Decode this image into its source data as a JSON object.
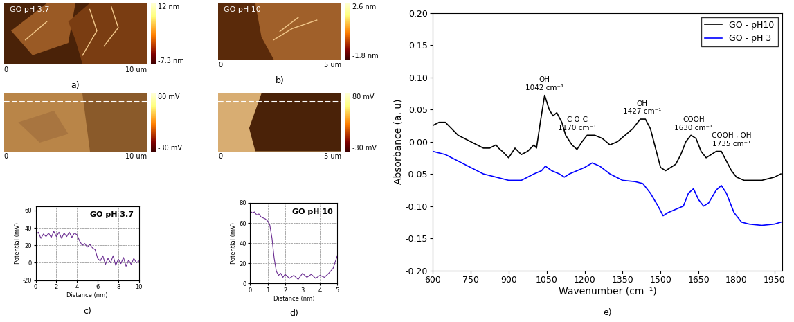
{
  "chart_data": [
    {
      "type": "image",
      "title": "GO pH 3.7",
      "caption": "a)",
      "xlim": [
        0,
        10
      ],
      "xticks": [
        0,
        {
          "value": 10,
          "label": "10 um"
        }
      ],
      "colorbar": {
        "range": [
          -7.3,
          12
        ],
        "ticks": [
          {
            "value": 12,
            "label": "12 nm"
          },
          {
            "value": -7.3,
            "label": "-7.3 nm"
          }
        ]
      }
    },
    {
      "type": "image",
      "title": "GO pH 10",
      "caption": "b)",
      "xlim": [
        0,
        5
      ],
      "xticks": [
        0,
        {
          "value": 5,
          "label": "5 um"
        }
      ],
      "colorbar": {
        "range": [
          -1.8,
          2.6
        ],
        "ticks": [
          {
            "value": 2.6,
            "label": "2.6 nm"
          },
          {
            "value": -1.8,
            "label": "-1.8 nm"
          }
        ]
      }
    },
    {
      "type": "image",
      "xlim": [
        0,
        10
      ],
      "xticks": [
        0,
        {
          "value": 10,
          "label": "10 um"
        }
      ],
      "colorbar": {
        "range": [
          -30,
          80
        ],
        "ticks": [
          {
            "value": 80,
            "label": "80 mV"
          },
          {
            "value": -30,
            "label": "-30 mV"
          }
        ]
      }
    },
    {
      "type": "image",
      "xlim": [
        0,
        5
      ],
      "xticks": [
        0,
        {
          "value": 5,
          "label": "5 um"
        }
      ],
      "colorbar": {
        "range": [
          -30,
          80
        ],
        "ticks": [
          {
            "value": 80,
            "label": "80 mV"
          },
          {
            "value": -30,
            "label": "-30 mV"
          }
        ]
      }
    },
    {
      "type": "line",
      "title": "GO pH 3.7",
      "caption": "c)",
      "x_label": "Distance (nm)",
      "y_label": "Potential (mV)",
      "color": "#6a2c91",
      "grid": true,
      "xlim": [
        0,
        10
      ],
      "xticks": [
        0,
        2,
        4,
        6,
        8,
        10
      ],
      "ylim": [
        -20,
        65
      ],
      "yticks": [
        -20,
        0,
        20,
        40,
        60
      ],
      "x": [
        0,
        0.25,
        0.5,
        0.75,
        1,
        1.25,
        1.5,
        1.75,
        2,
        2.25,
        2.5,
        2.75,
        3,
        3.25,
        3.5,
        3.75,
        4,
        4.25,
        4.5,
        4.75,
        5,
        5.25,
        5.5,
        5.75,
        6,
        6.25,
        6.5,
        6.75,
        7,
        7.25,
        7.5,
        7.75,
        8,
        8.25,
        8.5,
        8.75,
        9,
        9.25,
        9.5,
        9.75,
        10
      ],
      "values": [
        32,
        35,
        28,
        33,
        30,
        34,
        29,
        36,
        30,
        35,
        28,
        34,
        30,
        35,
        29,
        34,
        32,
        25,
        20,
        22,
        18,
        21,
        17,
        15,
        5,
        2,
        8,
        -2,
        5,
        0,
        8,
        -3,
        4,
        -1,
        6,
        -4,
        3,
        -2,
        5,
        0,
        2
      ]
    },
    {
      "type": "line",
      "title": "GO pH 10",
      "caption": "d)",
      "x_label": "Distance (nm)",
      "y_label": "Potential (mV)",
      "color": "#6a2c91",
      "grid": true,
      "xlim": [
        0,
        5
      ],
      "xticks": [
        0,
        1,
        2,
        3,
        4,
        5
      ],
      "ylim": [
        0,
        80
      ],
      "yticks": [
        0,
        20,
        40,
        60,
        80
      ],
      "x": [
        0,
        0.125,
        0.25,
        0.375,
        0.5,
        0.625,
        0.75,
        0.875,
        1,
        1.125,
        1.25,
        1.375,
        1.5,
        1.625,
        1.75,
        1.875,
        2,
        2.25,
        2.5,
        2.75,
        3,
        3.25,
        3.5,
        3.75,
        4,
        4.25,
        4.5,
        4.75,
        5
      ],
      "values": [
        72,
        70,
        71,
        68,
        69,
        66,
        65,
        64,
        62,
        58,
        45,
        25,
        12,
        8,
        10,
        6,
        9,
        5,
        8,
        4,
        10,
        6,
        9,
        5,
        8,
        6,
        10,
        15,
        28
      ]
    },
    {
      "type": "line",
      "caption": "e)",
      "x_label": "Wavenumber (cm⁻¹)",
      "y_label": "Absorbance (a. u)",
      "legend": "upper right",
      "xlim": [
        600,
        1980
      ],
      "xticks": [
        600,
        750,
        900,
        1050,
        1200,
        1350,
        1500,
        1650,
        1800,
        1950
      ],
      "ylim": [
        -0.2,
        0.2
      ],
      "yticks": [
        {
          "value": -0.2,
          "label": "-0.20"
        },
        {
          "value": -0.15,
          "label": "-0.15"
        },
        {
          "value": -0.1,
          "label": "-0.10"
        },
        {
          "value": -0.05,
          "label": "-0.05"
        },
        {
          "value": 0,
          "label": "0.00"
        },
        {
          "value": 0.05,
          "label": "0.05"
        },
        {
          "value": 0.1,
          "label": "0.10"
        },
        {
          "value": 0.15,
          "label": "0.15"
        },
        {
          "value": 0.2,
          "label": "0.20"
        }
      ],
      "series": [
        {
          "name": "GO - pH10",
          "color": "#000000",
          "x": [
            600,
            625,
            650,
            675,
            700,
            725,
            750,
            775,
            800,
            825,
            850,
            860,
            875,
            900,
            925,
            950,
            975,
            1000,
            1010,
            1025,
            1042,
            1060,
            1075,
            1090,
            1110,
            1125,
            1150,
            1170,
            1190,
            1210,
            1240,
            1270,
            1300,
            1330,
            1360,
            1390,
            1420,
            1440,
            1460,
            1480,
            1500,
            1520,
            1540,
            1560,
            1580,
            1600,
            1620,
            1640,
            1660,
            1680,
            1700,
            1720,
            1740,
            1760,
            1780,
            1800,
            1830,
            1860,
            1900,
            1950,
            1975
          ],
          "values": [
            0.025,
            0.03,
            0.03,
            0.02,
            0.01,
            0.005,
            0.0,
            -0.005,
            -0.01,
            -0.01,
            -0.005,
            -0.01,
            -0.015,
            -0.025,
            -0.01,
            -0.02,
            -0.015,
            -0.005,
            -0.01,
            0.03,
            0.072,
            0.05,
            0.04,
            0.045,
            0.03,
            0.01,
            -0.005,
            -0.012,
            0.0,
            0.01,
            0.01,
            0.005,
            -0.005,
            0.0,
            0.01,
            0.02,
            0.035,
            0.035,
            0.02,
            -0.01,
            -0.04,
            -0.045,
            -0.04,
            -0.035,
            -0.02,
            0.0,
            0.01,
            0.005,
            -0.015,
            -0.025,
            -0.02,
            -0.015,
            -0.015,
            -0.03,
            -0.045,
            -0.055,
            -0.06,
            -0.06,
            -0.06,
            -0.055,
            -0.05
          ]
        },
        {
          "name": "GO - pH 3",
          "color": "#0000ff",
          "x": [
            600,
            650,
            700,
            750,
            800,
            850,
            900,
            950,
            1000,
            1030,
            1045,
            1070,
            1100,
            1120,
            1140,
            1170,
            1200,
            1230,
            1260,
            1300,
            1350,
            1400,
            1430,
            1460,
            1490,
            1510,
            1530,
            1560,
            1590,
            1610,
            1630,
            1650,
            1670,
            1690,
            1720,
            1740,
            1760,
            1790,
            1820,
            1850,
            1900,
            1950,
            1975
          ],
          "values": [
            -0.015,
            -0.02,
            -0.03,
            -0.04,
            -0.05,
            -0.055,
            -0.06,
            -0.06,
            -0.05,
            -0.045,
            -0.038,
            -0.045,
            -0.05,
            -0.055,
            -0.05,
            -0.045,
            -0.04,
            -0.033,
            -0.038,
            -0.05,
            -0.06,
            -0.062,
            -0.065,
            -0.08,
            -0.1,
            -0.115,
            -0.11,
            -0.105,
            -0.1,
            -0.08,
            -0.073,
            -0.09,
            -0.1,
            -0.095,
            -0.075,
            -0.068,
            -0.08,
            -0.11,
            -0.125,
            -0.128,
            -0.13,
            -0.128,
            -0.125
          ]
        }
      ],
      "annotations": [
        {
          "text": "OH\n1042 cm⁻¹",
          "x": 1042
        },
        {
          "text": "C-O-C\n1170 cm⁻¹",
          "x": 1170
        },
        {
          "text": "OH\n1427 cm⁻¹",
          "x": 1427
        },
        {
          "text": "COOH\n1630 cm⁻¹",
          "x": 1630
        },
        {
          "text": "COOH , OH\n1735 cm⁻¹",
          "x": 1735
        }
      ]
    }
  ]
}
